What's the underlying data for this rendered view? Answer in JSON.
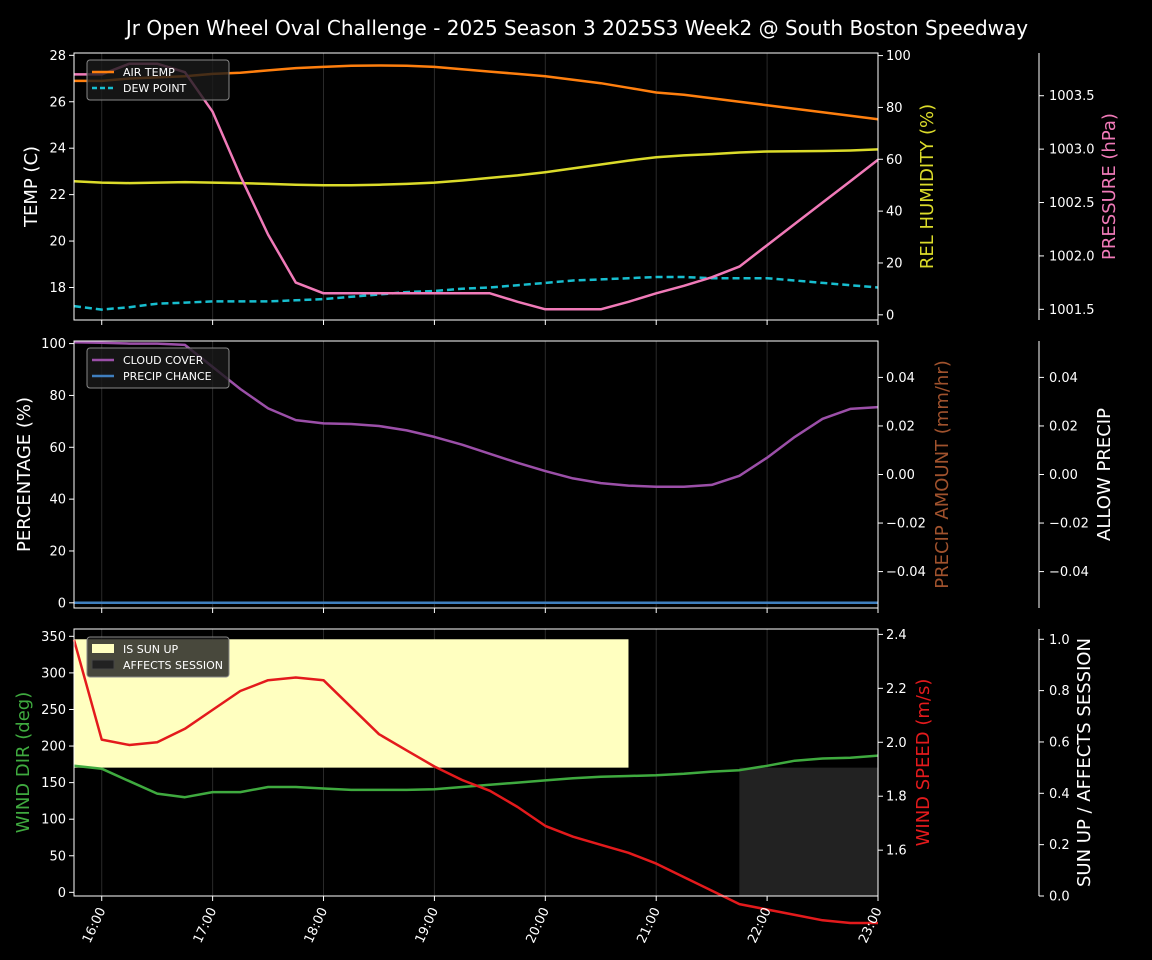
{
  "title": "Jr Open Wheel Oval Challenge - 2025 Season 3 2025S3 Week2 @ South Boston Speedway",
  "x_tick_labels": [
    "16:00",
    "17:00",
    "18:00",
    "19:00",
    "20:00",
    "21:00",
    "22:00",
    "23:00"
  ],
  "colors": {
    "background": "#000000",
    "air_temp": "#ff7f0e",
    "dew_point": "#17becf",
    "humidity": "#dbdb2a",
    "pressure": "#f07ab8",
    "cloud_cover": "#9b4fa8",
    "precip_chance": "#3f7fbf",
    "precip_amount_label": "#a0522d",
    "wind_dir": "#3faa3f",
    "wind_speed": "#e31a1c",
    "sun_up": "#ffffc0",
    "affects_session": "#222222"
  },
  "chart_data": [
    {
      "type": "line",
      "ylabel_left": "TEMP (C)",
      "ylabel_right": "REL HUMIDITY (%)",
      "ylabel_far_right": "PRESSURE (hPa)",
      "legend": {
        "placement": "top-left",
        "entries": [
          "AIR TEMP",
          "DEW POINT"
        ]
      },
      "x": [
        "15:45",
        "16:00",
        "16:15",
        "16:30",
        "16:45",
        "17:00",
        "17:15",
        "17:30",
        "17:45",
        "18:00",
        "18:15",
        "18:30",
        "18:45",
        "19:00",
        "19:15",
        "19:30",
        "19:45",
        "20:00",
        "20:15",
        "20:30",
        "20:45",
        "21:00",
        "21:15",
        "21:30",
        "21:45",
        "22:00",
        "22:15",
        "22:30",
        "22:45",
        "23:00"
      ],
      "xlim": [
        "15:45",
        "23:00"
      ],
      "left_axis": {
        "ylim": [
          16.6,
          28.1
        ],
        "ticks": [
          18,
          20,
          22,
          24,
          26,
          28
        ]
      },
      "right_axis": {
        "ylim": [
          -2,
          101
        ],
        "ticks": [
          0,
          20,
          40,
          60,
          80,
          100
        ]
      },
      "far_right_axis": {
        "ylim": [
          1001.4,
          1003.9
        ],
        "ticks": [
          "1001.5",
          "1002.0",
          "1002.5",
          "1003.0",
          "1003.5"
        ]
      },
      "series": [
        {
          "name": "AIR TEMP",
          "axis": "left",
          "style": "solid",
          "values": [
            26.9,
            26.9,
            27.0,
            27.05,
            27.1,
            27.2,
            27.25,
            27.35,
            27.45,
            27.5,
            27.55,
            27.56,
            27.55,
            27.5,
            27.4,
            27.3,
            27.2,
            27.1,
            26.95,
            26.8,
            26.6,
            26.4,
            26.3,
            26.15,
            26.0,
            25.85,
            25.7,
            25.55,
            25.4,
            25.25
          ]
        },
        {
          "name": "DEW POINT",
          "axis": "left",
          "style": "dashed",
          "values": [
            17.2,
            17.05,
            17.15,
            17.3,
            17.35,
            17.4,
            17.4,
            17.4,
            17.45,
            17.5,
            17.6,
            17.7,
            17.8,
            17.85,
            17.95,
            18.0,
            18.1,
            18.2,
            18.3,
            18.35,
            18.4,
            18.45,
            18.45,
            18.4,
            18.4,
            18.4,
            18.3,
            18.2,
            18.1,
            18.0
          ]
        },
        {
          "values": [
            51.5,
            51.0,
            50.8,
            51.0,
            51.2,
            51.0,
            50.8,
            50.5,
            50.2,
            50.0,
            50.0,
            50.2,
            50.5,
            51.0,
            51.8,
            52.8,
            53.8,
            55.0,
            56.5,
            58.0,
            59.5,
            60.8,
            61.5,
            62.0,
            62.6,
            63.0,
            63.1,
            63.2,
            63.4,
            63.8
          ],
          "axis": "right",
          "style": "solid"
        },
        {
          "values": [
            1003.7,
            1003.7,
            1003.8,
            1003.8,
            1003.72,
            1003.35,
            1002.75,
            1002.2,
            1001.75,
            1001.65,
            1001.65,
            1001.65,
            1001.65,
            1001.65,
            1001.65,
            1001.65,
            1001.57,
            1001.5,
            1001.5,
            1001.5,
            1001.57,
            1001.65,
            1001.72,
            1001.8,
            1001.9,
            1002.1,
            1002.3,
            1002.5,
            1002.7,
            1002.9
          ],
          "axis": "far_right",
          "style": "solid"
        }
      ]
    },
    {
      "type": "line",
      "ylabel_left": "PERCENTAGE (%)",
      "ylabel_right": "PRECIP AMOUNT (mm/hr)",
      "ylabel_far_right": "ALLOW PRECIP",
      "legend": {
        "placement": "top-left",
        "entries": [
          "CLOUD COVER",
          "PRECIP CHANCE"
        ]
      },
      "x": [
        "15:45",
        "16:00",
        "16:15",
        "16:30",
        "16:45",
        "17:00",
        "17:15",
        "17:30",
        "17:45",
        "18:00",
        "18:15",
        "18:30",
        "18:45",
        "19:00",
        "19:15",
        "19:30",
        "19:45",
        "20:00",
        "20:15",
        "20:30",
        "20:45",
        "21:00",
        "21:15",
        "21:30",
        "21:45",
        "22:00",
        "22:15",
        "22:30",
        "22:45",
        "23:00"
      ],
      "left_axis": {
        "ylim": [
          -2,
          101
        ],
        "ticks": [
          0,
          20,
          40,
          60,
          80,
          100
        ]
      },
      "right_axis": {
        "ylim": [
          -0.055,
          0.055
        ],
        "ticks": [
          "−0.04",
          "−0.02",
          "0.00",
          "0.02",
          "0.04"
        ]
      },
      "far_right_axis": {
        "ylim": [
          -0.055,
          0.055
        ],
        "ticks": [
          "−0.04",
          "−0.02",
          "0.00",
          "0.02",
          "0.04"
        ]
      },
      "series": [
        {
          "name": "CLOUD COVER",
          "axis": "left",
          "values": [
            100.5,
            100.3,
            100,
            100,
            99.5,
            91,
            82.5,
            75,
            70.5,
            69.2,
            69,
            68.2,
            66.5,
            64,
            61,
            57.5,
            54,
            50.8,
            48,
            46.2,
            45.2,
            44.8,
            44.8,
            45.5,
            49,
            56,
            64,
            71,
            74.8,
            75.5
          ]
        },
        {
          "name": "PRECIP CHANCE",
          "axis": "left",
          "values": [
            0,
            0,
            0,
            0,
            0,
            0,
            0,
            0,
            0,
            0,
            0,
            0,
            0,
            0,
            0,
            0,
            0,
            0,
            0,
            0,
            0,
            0,
            0,
            0,
            0,
            0,
            0,
            0,
            0,
            0
          ]
        }
      ]
    },
    {
      "type": "line",
      "ylabel_left": "WIND DIR (deg)",
      "ylabel_right": "WIND SPEED (m/s)",
      "ylabel_far_right": "SUN UP / AFFECTS SESSION",
      "legend": {
        "placement": "top-left",
        "entries": [
          "IS SUN UP",
          "AFFECTS SESSION"
        ]
      },
      "x": [
        "15:45",
        "16:00",
        "16:15",
        "16:30",
        "16:45",
        "17:00",
        "17:15",
        "17:30",
        "17:45",
        "18:00",
        "18:15",
        "18:30",
        "18:45",
        "19:00",
        "19:15",
        "19:30",
        "19:45",
        "20:00",
        "20:15",
        "20:30",
        "20:45",
        "21:00",
        "21:15",
        "21:30",
        "21:45",
        "22:00",
        "22:15",
        "22:30",
        "22:45",
        "23:00"
      ],
      "left_axis": {
        "ylim": [
          -5,
          360
        ],
        "ticks": [
          0,
          50,
          100,
          150,
          200,
          250,
          300,
          350
        ]
      },
      "right_axis": {
        "ylim": [
          1.43,
          2.42
        ],
        "ticks": [
          "1.6",
          "1.8",
          "2.0",
          "2.2",
          "2.4"
        ]
      },
      "far_right_axis": {
        "ylim": [
          0,
          1.04
        ],
        "ticks": [
          "0.0",
          "0.2",
          "0.4",
          "0.6",
          "0.8",
          "1.0"
        ]
      },
      "sun_up": {
        "start": "15:45",
        "end": "20:45",
        "value": 1
      },
      "affects_session": {
        "start": "21:45",
        "end": "23:00",
        "value": 0.5
      },
      "series": [
        {
          "values": [
            173,
            169,
            152,
            135,
            130,
            137,
            137,
            144,
            144,
            142,
            140,
            140,
            140,
            141,
            144,
            147,
            150,
            153,
            156,
            158,
            159,
            160,
            162,
            165,
            167,
            173,
            180,
            183,
            184,
            187
          ],
          "axis": "left"
        },
        {
          "values": [
            2.38,
            2.01,
            1.99,
            2.0,
            2.05,
            2.12,
            2.19,
            2.23,
            2.24,
            2.23,
            2.13,
            2.03,
            1.97,
            1.91,
            1.86,
            1.82,
            1.76,
            1.69,
            1.65,
            1.62,
            1.59,
            1.55,
            1.5,
            1.45,
            1.4,
            1.38,
            1.36,
            1.34,
            1.33,
            1.33
          ],
          "axis": "right"
        }
      ]
    }
  ]
}
